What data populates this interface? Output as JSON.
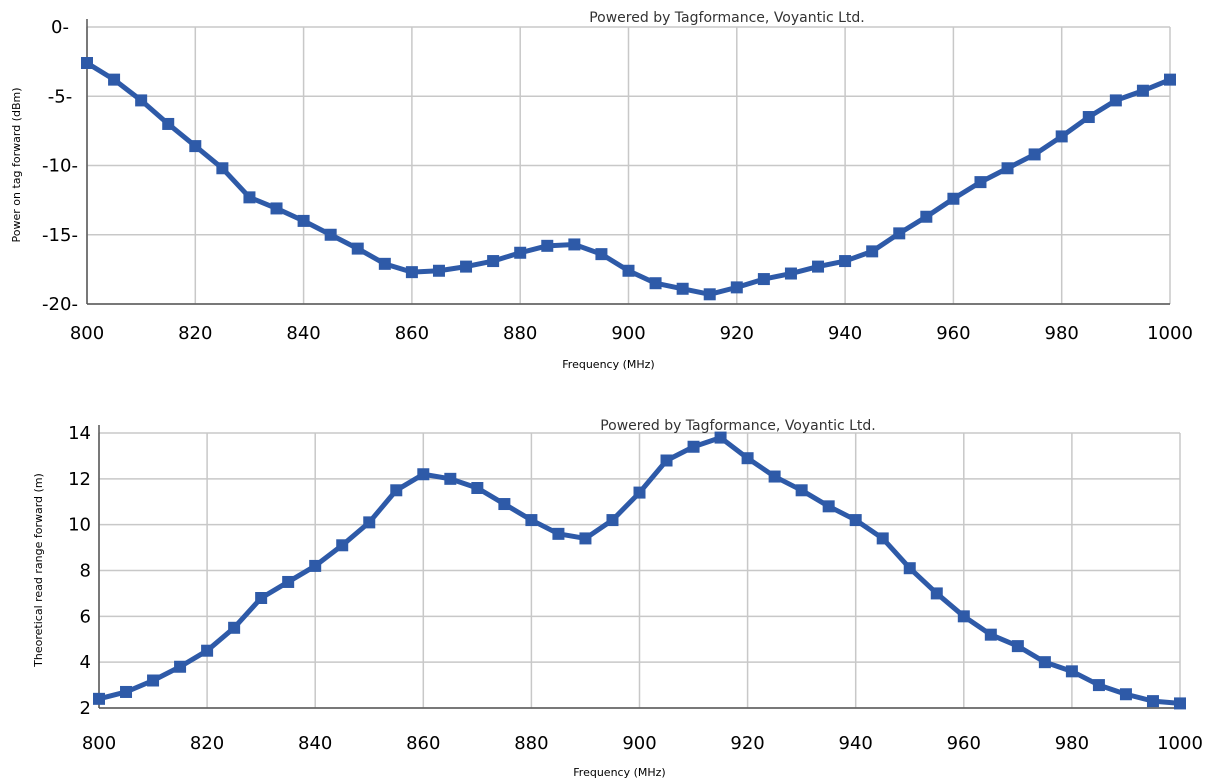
{
  "colors": {
    "series": "#2E5AA8",
    "grid": "#c8c8c8"
  },
  "chart_data": [
    {
      "type": "line",
      "title": "",
      "credit": "Powered by Tagformance, Voyantic Ltd.",
      "xlabel": "Frequency (MHz)",
      "ylabel": "Power on tag forward (dBm)",
      "xlim": [
        800,
        1000
      ],
      "ylim": [
        -20,
        0
      ],
      "xticks": [
        800,
        820,
        840,
        860,
        880,
        900,
        920,
        940,
        960,
        980,
        1000
      ],
      "yticks": [
        0,
        -5,
        -10,
        -15,
        -20
      ],
      "xtick_labels": [
        "800",
        "820",
        "840",
        "860",
        "880",
        "900",
        "920",
        "940",
        "960",
        "980",
        "1000"
      ],
      "ytick_labels": [
        "0-",
        "-5-",
        "-10-",
        "-15-",
        "-20-"
      ],
      "grid": true,
      "series": [
        {
          "x": [
            800,
            805,
            810,
            815,
            820,
            825,
            830,
            835,
            840,
            845,
            850,
            855,
            860,
            865,
            870,
            875,
            880,
            885,
            890,
            895,
            900,
            905,
            910,
            915,
            920,
            925,
            930,
            935,
            940,
            945,
            950,
            955,
            960,
            965,
            970,
            975,
            980,
            985,
            990,
            995,
            1000
          ],
          "values": [
            -2.6,
            -3.8,
            -5.3,
            -7.0,
            -8.6,
            -10.2,
            -12.3,
            -13.1,
            -14.0,
            -15.0,
            -16.0,
            -17.1,
            -17.7,
            -17.6,
            -17.3,
            -16.9,
            -16.3,
            -15.8,
            -15.7,
            -16.4,
            -17.6,
            -18.5,
            -18.9,
            -19.3,
            -18.8,
            -18.2,
            -17.8,
            -17.3,
            -16.9,
            -16.2,
            -14.9,
            -13.7,
            -12.4,
            -11.2,
            -10.2,
            -9.2,
            -7.9,
            -6.5,
            -5.3,
            -4.6,
            -3.8
          ]
        }
      ]
    },
    {
      "type": "line",
      "title": "",
      "credit": "Powered by Tagformance, Voyantic Ltd.",
      "xlabel": "Frequency (MHz)",
      "ylabel": "Theoretical read range forward (m)",
      "xlim": [
        800,
        1000
      ],
      "ylim": [
        2,
        14
      ],
      "xticks": [
        800,
        820,
        840,
        860,
        880,
        900,
        920,
        940,
        960,
        980,
        1000
      ],
      "yticks": [
        14,
        12,
        10,
        8,
        6,
        4,
        2
      ],
      "xtick_labels": [
        "800",
        "820",
        "840",
        "860",
        "880",
        "900",
        "920",
        "940",
        "960",
        "980",
        "1000"
      ],
      "ytick_labels": [
        "14",
        "12",
        "10",
        "8",
        "6",
        "4",
        "2"
      ],
      "grid": true,
      "series": [
        {
          "x": [
            800,
            805,
            810,
            815,
            820,
            825,
            830,
            835,
            840,
            845,
            850,
            855,
            860,
            865,
            870,
            875,
            880,
            885,
            890,
            895,
            900,
            905,
            910,
            915,
            920,
            925,
            930,
            935,
            940,
            945,
            950,
            955,
            960,
            965,
            970,
            975,
            980,
            985,
            990,
            995,
            1000
          ],
          "values": [
            2.4,
            2.7,
            3.2,
            3.8,
            4.5,
            5.5,
            6.8,
            7.5,
            8.2,
            9.1,
            10.1,
            11.5,
            12.2,
            12.0,
            11.6,
            10.9,
            10.2,
            9.6,
            9.4,
            10.2,
            11.4,
            12.8,
            13.4,
            13.8,
            12.9,
            12.1,
            11.5,
            10.8,
            10.2,
            9.4,
            8.1,
            7.0,
            6.0,
            5.2,
            4.7,
            4.0,
            3.6,
            3.0,
            2.6,
            2.3,
            2.2
          ]
        }
      ]
    }
  ]
}
